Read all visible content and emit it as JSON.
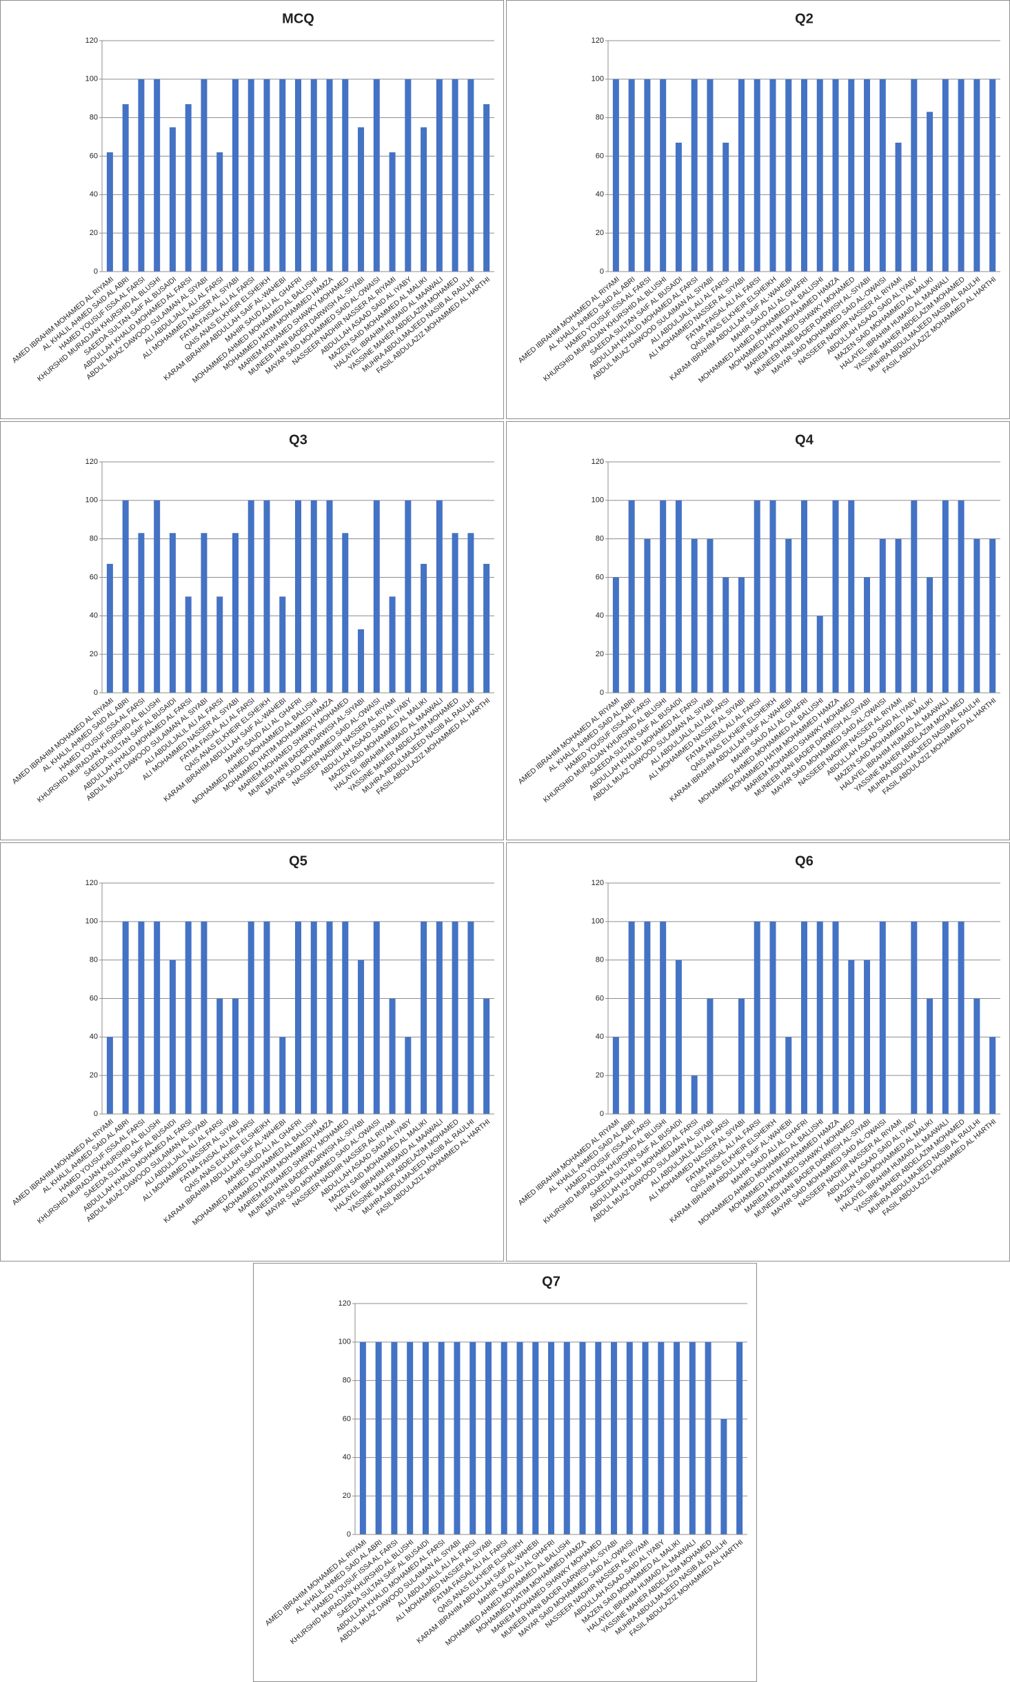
{
  "chart_data": [
    {
      "type": "bar",
      "title": "MCQ",
      "color": "#4472c4",
      "grid": true,
      "ylim": [
        0,
        120
      ],
      "yticks": [
        0,
        20,
        40,
        60,
        80,
        100,
        120
      ],
      "categories": [
        "AMED IBRAHIM MOHAMED AL RIYAMI",
        "AL KHALIL AHMED SAID AL ABRI",
        "HAMED YOUSUF ISSA AL FARSI",
        "KHURSHID MURADJAN KHURSHID AL BLUSHI",
        "SAEEDA SULTAN SAIF AL BUSAIDI",
        "ABDULLAH KHALID MOHAMED AL FARSI",
        "ABDUL MUAZ DAWOOD SULAIMAN AL SIYABI",
        "ALI ABDULJALIL ALI AL FARSI",
        "ALI MOHAMMED NASSER AL SIYABI",
        "FATMA FAISAL ALI AL FARSI",
        "QAIS ANAS ELKHEIR ELSHEIKH",
        "KARAM IBRAHIM ABDULLAH SAIF AL-WAHEBI",
        "MAHIR SAUD ALI AL GHAFRI",
        "MOHAMMED AHMED MOHAMMED AL BALUSHI",
        "MOHAMMED HATIM MOHAMMED HAMZA",
        "MARIEM MOHAMED SHAWKY MOHAMED",
        "MUNEEB HANI BADER DARWISH AL-SIYABI",
        "MAYAR SAID MOHAMMED SAID AL-OWAISI",
        "NASSEER NADHIR NASSER AL RIYAMI",
        "ABDULLAH ASAAD SAID AL IYABY",
        "MAZEN SAID MOHAMMED AL MALIKI",
        "HALAYEL IBRAHIM HUMAID AL MAAWALI",
        "YASSINE MAHER ABDELAZIM MOHAMED",
        "MUHRA ABDULMAJEED NASIB AL RAULHI",
        "FASIL ABDULAZIZ MOHAMMED AL HARTHI"
      ],
      "values": [
        62,
        87,
        100,
        100,
        75,
        87,
        100,
        62,
        100,
        100,
        100,
        100,
        100,
        100,
        100,
        100,
        75,
        100,
        62,
        100,
        75,
        100,
        100,
        100,
        87
      ]
    },
    {
      "type": "bar",
      "title": "Q2",
      "color": "#4472c4",
      "grid": true,
      "ylim": [
        0,
        120
      ],
      "yticks": [
        0,
        20,
        40,
        60,
        80,
        100,
        120
      ],
      "categories": [
        "AMED IBRAHIM MOHAMED AL RIYAMI",
        "AL KHALIL AHMED SAID AL ABRI",
        "HAMED YOUSUF ISSA AL FARSI",
        "KHURSHID MURADJAN KHURSHID AL BLUSHI",
        "SAEEDA SULTAN SAIF AL BUSAIDI",
        "ABDULLAH KHALID MOHAMED AL FARSI",
        "ABDUL MUAZ DAWOOD SULAIMAN AL SIYABI",
        "ALI ABDULJALIL ALI AL FARSI",
        "ALI MOHAMMED NASSER AL SIYABI",
        "FATMA FAISAL ALI AL FARSI",
        "QAIS ANAS ELKHEIR ELSHEIKH",
        "KARAM IBRAHIM ABDULLAH SAIF AL-WAHEBI",
        "MAHIR SAUD ALI AL GHAFRI",
        "MOHAMMED AHMED MOHAMMED AL BALUSHI",
        "MOHAMMED HATIM MOHAMMED HAMZA",
        "MARIEM MOHAMED SHAWKY MOHAMED",
        "MUNEEB HANI BADER DARWISH AL-SIYABI",
        "MAYAR SAID MOHAMMED SAID AL-OWAISI",
        "NASSEER NADHIR NASSER AL RIYAMI",
        "ABDULLAH ASAAD SAID AL IYABY",
        "MAZEN SAID MOHAMMED AL MALIKI",
        "HALAYEL IBRAHIM HUMAID AL MAAWALI",
        "YASSINE MAHER ABDELAZIM MOHAMED",
        "MUHRA ABDULMAJEED NASIB AL RAULHI",
        "FASIL ABDULAZIZ MOHAMMED AL HARTHI"
      ],
      "values": [
        100,
        100,
        100,
        100,
        67,
        100,
        100,
        67,
        100,
        100,
        100,
        100,
        100,
        100,
        100,
        100,
        100,
        100,
        67,
        100,
        83,
        100,
        100,
        100,
        100
      ]
    },
    {
      "type": "bar",
      "title": "Q3",
      "color": "#4472c4",
      "grid": true,
      "ylim": [
        0,
        120
      ],
      "yticks": [
        0,
        20,
        40,
        60,
        80,
        100,
        120
      ],
      "categories": [
        "AMED IBRAHIM MOHAMED AL RIYAMI",
        "AL KHALIL AHMED SAID AL ABRI",
        "HAMED YOUSUF ISSA AL FARSI",
        "KHURSHID MURADJAN KHURSHID AL BLUSHI",
        "SAEEDA SULTAN SAIF AL BUSAIDI",
        "ABDULLAH KHALID MOHAMED AL FARSI",
        "ABDUL MUAZ DAWOOD SULAIMAN AL SIYABI",
        "ALI ABDULJALIL ALI AL FARSI",
        "ALI MOHAMMED NASSER AL SIYABI",
        "FATMA FAISAL ALI AL FARSI",
        "QAIS ANAS ELKHEIR ELSHEIKH",
        "KARAM IBRAHIM ABDULLAH SAIF AL-WAHEBI",
        "MAHIR SAUD ALI AL GHAFRI",
        "MOHAMMED AHMED MOHAMMED AL BALUSHI",
        "MOHAMMED HATIM MOHAMMED HAMZA",
        "MARIEM MOHAMED SHAWKY MOHAMED",
        "MUNEEB HANI BADER DARWISH AL-SIYABI",
        "MAYAR SAID MOHAMMED SAID AL-OWAISI",
        "NASSEER NADHIR NASSER AL RIYAMI",
        "ABDULLAH ASAAD SAID AL IYABY",
        "MAZEN SAID MOHAMMED AL MALIKI",
        "HALAYEL IBRAHIM HUMAID AL MAAWALI",
        "YASSINE MAHER ABDELAZIM MOHAMED",
        "MUHRA ABDULMAJEED NASIB AL RAULHI",
        "FASIL ABDULAZIZ MOHAMMED AL HARTHI"
      ],
      "values": [
        67,
        100,
        83,
        100,
        83,
        50,
        83,
        50,
        83,
        100,
        100,
        50,
        100,
        100,
        100,
        83,
        33,
        100,
        50,
        100,
        67,
        100,
        83,
        83,
        67
      ]
    },
    {
      "type": "bar",
      "title": "Q4",
      "color": "#4472c4",
      "grid": true,
      "ylim": [
        0,
        120
      ],
      "yticks": [
        0,
        20,
        40,
        60,
        80,
        100,
        120
      ],
      "categories": [
        "AMED IBRAHIM MOHAMED AL RIYAMI",
        "AL KHALIL AHMED SAID AL ABRI",
        "HAMED YOUSUF ISSA AL FARSI",
        "KHURSHID MURADJAN KHURSHID AL BLUSHI",
        "SAEEDA SULTAN SAIF AL BUSAIDI",
        "ABDULLAH KHALID MOHAMED AL FARSI",
        "ABDUL MUAZ DAWOOD SULAIMAN AL SIYABI",
        "ALI ABDULJALIL ALI AL FARSI",
        "ALI MOHAMMED NASSER AL SIYABI",
        "FATMA FAISAL ALI AL FARSI",
        "QAIS ANAS ELKHEIR ELSHEIKH",
        "KARAM IBRAHIM ABDULLAH SAIF AL-WAHEBI",
        "MAHIR SAUD ALI AL GHAFRI",
        "MOHAMMED AHMED MOHAMMED AL BALUSHI",
        "MOHAMMED HATIM MOHAMMED HAMZA",
        "MARIEM MOHAMED SHAWKY MOHAMED",
        "MUNEEB HANI BADER DARWISH AL-SIYABI",
        "MAYAR SAID MOHAMMED SAID AL-OWAISI",
        "NASSEER NADHIR NASSER AL RIYAMI",
        "ABDULLAH ASAAD SAID AL IYABY",
        "MAZEN SAID MOHAMMED AL MALIKI",
        "HALAYEL IBRAHIM HUMAID AL MAAWALI",
        "YASSINE MAHER ABDELAZIM MOHAMED",
        "MUHRA ABDULMAJEED NASIB AL RAULHI",
        "FASIL ABDULAZIZ MOHAMMED AL HARTHI"
      ],
      "values": [
        60,
        100,
        80,
        100,
        100,
        80,
        80,
        60,
        60,
        100,
        100,
        80,
        100,
        40,
        100,
        100,
        60,
        80,
        80,
        100,
        60,
        100,
        100,
        80,
        80
      ]
    },
    {
      "type": "bar",
      "title": "Q5",
      "color": "#4472c4",
      "grid": true,
      "ylim": [
        0,
        120
      ],
      "yticks": [
        0,
        20,
        40,
        60,
        80,
        100,
        120
      ],
      "categories": [
        "AMED IBRAHIM MOHAMED AL RIYAMI",
        "AL KHALIL AHMED SAID AL ABRI",
        "HAMED YOUSUF ISSA AL FARSI",
        "KHURSHID MURADJAN KHURSHID AL BLUSHI",
        "SAEEDA SULTAN SAIF AL BUSAIDI",
        "ABDULLAH KHALID MOHAMED AL FARSI",
        "ABDUL MUAZ DAWOOD SULAIMAN AL SIYABI",
        "ALI ABDULJALIL ALI AL FARSI",
        "ALI MOHAMMED NASSER AL SIYABI",
        "FATMA FAISAL ALI AL FARSI",
        "QAIS ANAS ELKHEIR ELSHEIKH",
        "KARAM IBRAHIM ABDULLAH SAIF AL-WAHEBI",
        "MAHIR SAUD ALI AL GHAFRI",
        "MOHAMMED AHMED MOHAMMED AL BALUSHI",
        "MOHAMMED HATIM MOHAMMED HAMZA",
        "MARIEM MOHAMED SHAWKY MOHAMED",
        "MUNEEB HANI BADER DARWISH AL-SIYABI",
        "MAYAR SAID MOHAMMED SAID AL-OWAISI",
        "NASSEER NADHIR NASSER AL RIYAMI",
        "ABDULLAH ASAAD SAID AL IYABY",
        "MAZEN SAID MOHAMMED AL MALIKI",
        "HALAYEL IBRAHIM HUMAID AL MAAWALI",
        "YASSINE MAHER ABDELAZIM MOHAMED",
        "MUHRA ABDULMAJEED NASIB AL RAULHI",
        "FASIL ABDULAZIZ MOHAMMED AL HARTHI"
      ],
      "values": [
        40,
        100,
        100,
        100,
        80,
        100,
        100,
        60,
        60,
        100,
        100,
        40,
        100,
        100,
        100,
        100,
        80,
        100,
        60,
        40,
        100,
        100,
        100,
        100,
        60
      ]
    },
    {
      "type": "bar",
      "title": "Q6",
      "color": "#4472c4",
      "grid": true,
      "ylim": [
        0,
        120
      ],
      "yticks": [
        0,
        20,
        40,
        60,
        80,
        100,
        120
      ],
      "categories": [
        "AMED IBRAHIM MOHAMED AL RIYAMI",
        "AL KHALIL AHMED SAID AL ABRI",
        "HAMED YOUSUF ISSA AL FARSI",
        "KHURSHID MURADJAN KHURSHID AL BLUSHI",
        "SAEEDA SULTAN SAIF AL BUSAIDI",
        "ABDULLAH KHALID MOHAMED AL FARSI",
        "ABDUL MUAZ DAWOOD SULAIMAN AL SIYABI",
        "ALI ABDULJALIL ALI AL FARSI",
        "ALI MOHAMMED NASSER AL SIYABI",
        "FATMA FAISAL ALI AL FARSI",
        "QAIS ANAS ELKHEIR ELSHEIKH",
        "KARAM IBRAHIM ABDULLAH SAIF AL-WAHEBI",
        "MAHIR SAUD ALI AL GHAFRI",
        "MOHAMMED AHMED MOHAMMED AL BALUSHI",
        "MOHAMMED HATIM MOHAMMED HAMZA",
        "MARIEM MOHAMED SHAWKY MOHAMED",
        "MUNEEB HANI BADER DARWISH AL-SIYABI",
        "MAYAR SAID MOHAMMED SAID AL-OWAISI",
        "NASSEER NADHIR NASSER AL RIYAMI",
        "ABDULLAH ASAAD SAID AL IYABY",
        "MAZEN SAID MOHAMMED AL MALIKI",
        "HALAYEL IBRAHIM HUMAID AL MAAWALI",
        "YASSINE MAHER ABDELAZIM MOHAMED",
        "MUHRA ABDULMAJEED NASIB AL RAULHI",
        "FASIL ABDULAZIZ MOHAMMED AL HARTHI"
      ],
      "values": [
        40,
        100,
        100,
        100,
        80,
        20,
        60,
        0,
        60,
        100,
        100,
        40,
        100,
        100,
        100,
        80,
        80,
        100,
        0,
        100,
        60,
        100,
        100,
        60,
        40
      ]
    },
    {
      "type": "bar",
      "title": "Q7",
      "color": "#4472c4",
      "grid": true,
      "ylim": [
        0,
        120
      ],
      "yticks": [
        0,
        20,
        40,
        60,
        80,
        100,
        120
      ],
      "categories": [
        "AMED IBRAHIM MOHAMED AL RIYAMI",
        "AL KHALIL AHMED SAID AL ABRI",
        "HAMED YOUSUF ISSA AL FARSI",
        "KHURSHID MURADJAN KHURSHID AL BLUSHI",
        "SAEEDA SULTAN SAIF AL BUSAIDI",
        "ABDULLAH KHALID MOHAMED AL FARSI",
        "ABDUL MUAZ DAWOOD SULAIMAN AL SIYABI",
        "ALI ABDULJALIL ALI AL FARSI",
        "ALI MOHAMMED NASSER AL SIYABI",
        "FATMA FAISAL ALI AL FARSI",
        "QAIS ANAS ELKHEIR ELSHEIKH",
        "KARAM IBRAHIM ABDULLAH SAIF AL-WAHEBI",
        "MAHIR SAUD ALI AL GHAFRI",
        "MOHAMMED AHMED MOHAMMED AL BALUSHI",
        "MOHAMMED HATIM MOHAMMED HAMZA",
        "MARIEM MOHAMED SHAWKY MOHAMED",
        "MUNEEB HANI BADER DARWISH AL-SIYABI",
        "MAYAR SAID MOHAMMED SAID AL-OWAISI",
        "NASSEER NADHIR NASSER AL RIYAMI",
        "ABDULLAH ASAAD SAID AL IYABY",
        "MAZEN SAID MOHAMMED AL MALIKI",
        "HALAYEL IBRAHIM HUMAID AL MAAWALI",
        "YASSINE MAHER ABDELAZIM MOHAMED",
        "MUHRA ABDULMAJEED NASIB AL RAULHI",
        "FASIL ABDULAZIZ MOHAMMED AL HARTHI"
      ],
      "values": [
        100,
        100,
        100,
        100,
        100,
        100,
        100,
        100,
        100,
        100,
        100,
        100,
        100,
        100,
        100,
        100,
        100,
        100,
        100,
        100,
        100,
        100,
        100,
        60,
        100
      ]
    }
  ]
}
